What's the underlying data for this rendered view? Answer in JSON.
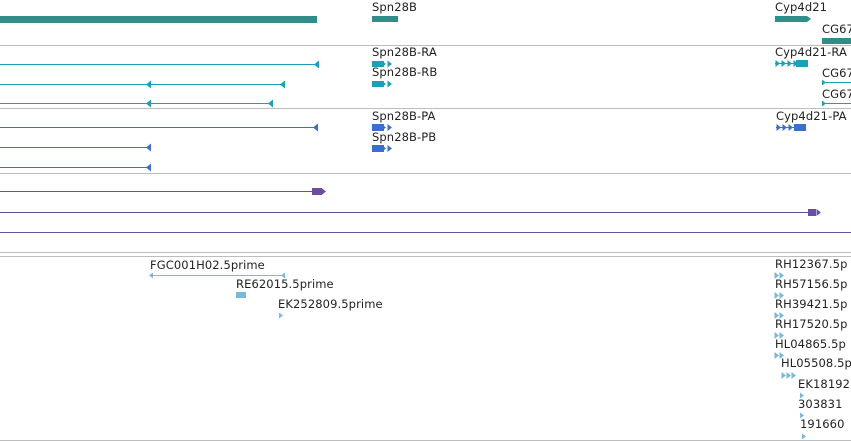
{
  "colors": {
    "gene": "#2f8f88",
    "rna": "#1aa0b8",
    "protein": "#3a6fd0",
    "variant": "#6a4fa0",
    "est": "#7ab8dc",
    "separator": "#bdbdbd",
    "label": "#222222"
  },
  "gene_track": {
    "labels": [
      {
        "text": "Spn28B"
      },
      {
        "text": "Cyp4d21"
      },
      {
        "text": "CG67"
      }
    ]
  },
  "transcript_track": {
    "labels": [
      {
        "text": "Spn28B-RA"
      },
      {
        "text": "Cyp4d21-RA"
      },
      {
        "text": "Spn28B-RB"
      },
      {
        "text": "CG67"
      },
      {
        "text": "CG67"
      }
    ]
  },
  "protein_track": {
    "labels": [
      {
        "text": "Spn28B-PA"
      },
      {
        "text": "Cyp4d21-PA"
      },
      {
        "text": "Spn28B-PB"
      }
    ]
  },
  "est_track": {
    "labels": [
      {
        "text": "FGC001H02.5prime"
      },
      {
        "text": "RE62015.5prime"
      },
      {
        "text": "EK252809.5prime"
      },
      {
        "text": "RH12367.5p"
      },
      {
        "text": "RH57156.5p"
      },
      {
        "text": "RH39421.5p"
      },
      {
        "text": "RH17520.5p"
      },
      {
        "text": "HL04865.5p"
      },
      {
        "text": "HL05508.5p"
      },
      {
        "text": "EK18192"
      },
      {
        "text": "303831"
      },
      {
        "text": "191660"
      }
    ]
  }
}
